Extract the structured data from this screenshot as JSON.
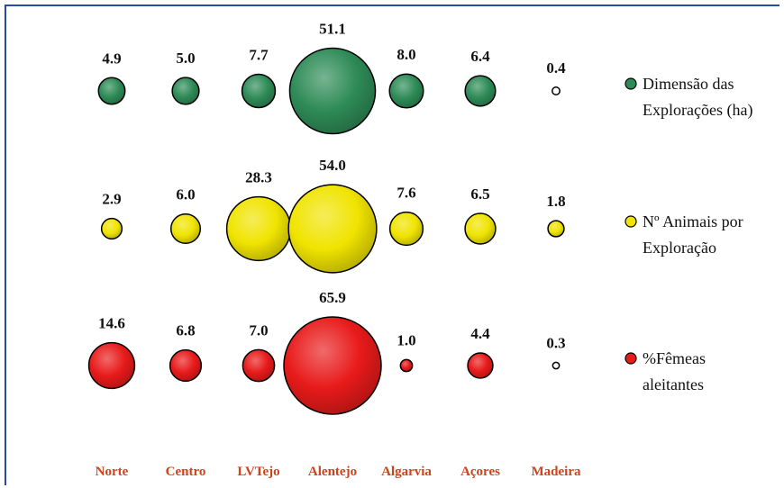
{
  "chart_data": {
    "type": "bubble",
    "categories": [
      "Norte",
      "Centro",
      "LVTejo",
      "Alentejo",
      "Algarvia",
      "Açores",
      "Madeira"
    ],
    "series": [
      {
        "name_lines": [
          "Dimensão das",
          "Explorações (ha)"
        ],
        "color": "#2e8b57",
        "values": [
          4.9,
          5.0,
          7.7,
          51.1,
          8.0,
          6.4,
          0.4
        ],
        "labels": [
          "4.9",
          "5.0",
          "7.7",
          "51.1",
          "8.0",
          "6.4",
          "0.4"
        ]
      },
      {
        "name_lines": [
          "Nº Animais por",
          "Exploração"
        ],
        "color": "#f0e400",
        "values": [
          2.9,
          6.0,
          28.3,
          54.0,
          7.6,
          6.5,
          1.8
        ],
        "labels": [
          "2.9",
          "6.0",
          "28.3",
          "54.0",
          "7.6",
          "6.5",
          "1.8"
        ]
      },
      {
        "name_lines": [
          "%Fêmeas",
          "aleitantes"
        ],
        "color": "#e81a1a",
        "values": [
          14.6,
          6.8,
          7.0,
          65.9,
          1.0,
          4.4,
          0.3
        ],
        "labels": [
          "14.6",
          "6.8",
          "7.0",
          "65.9",
          "1.0",
          "4.4",
          "0.3"
        ]
      }
    ],
    "category_label_color": "#d0421a",
    "legend_position": "right",
    "grid": false
  }
}
